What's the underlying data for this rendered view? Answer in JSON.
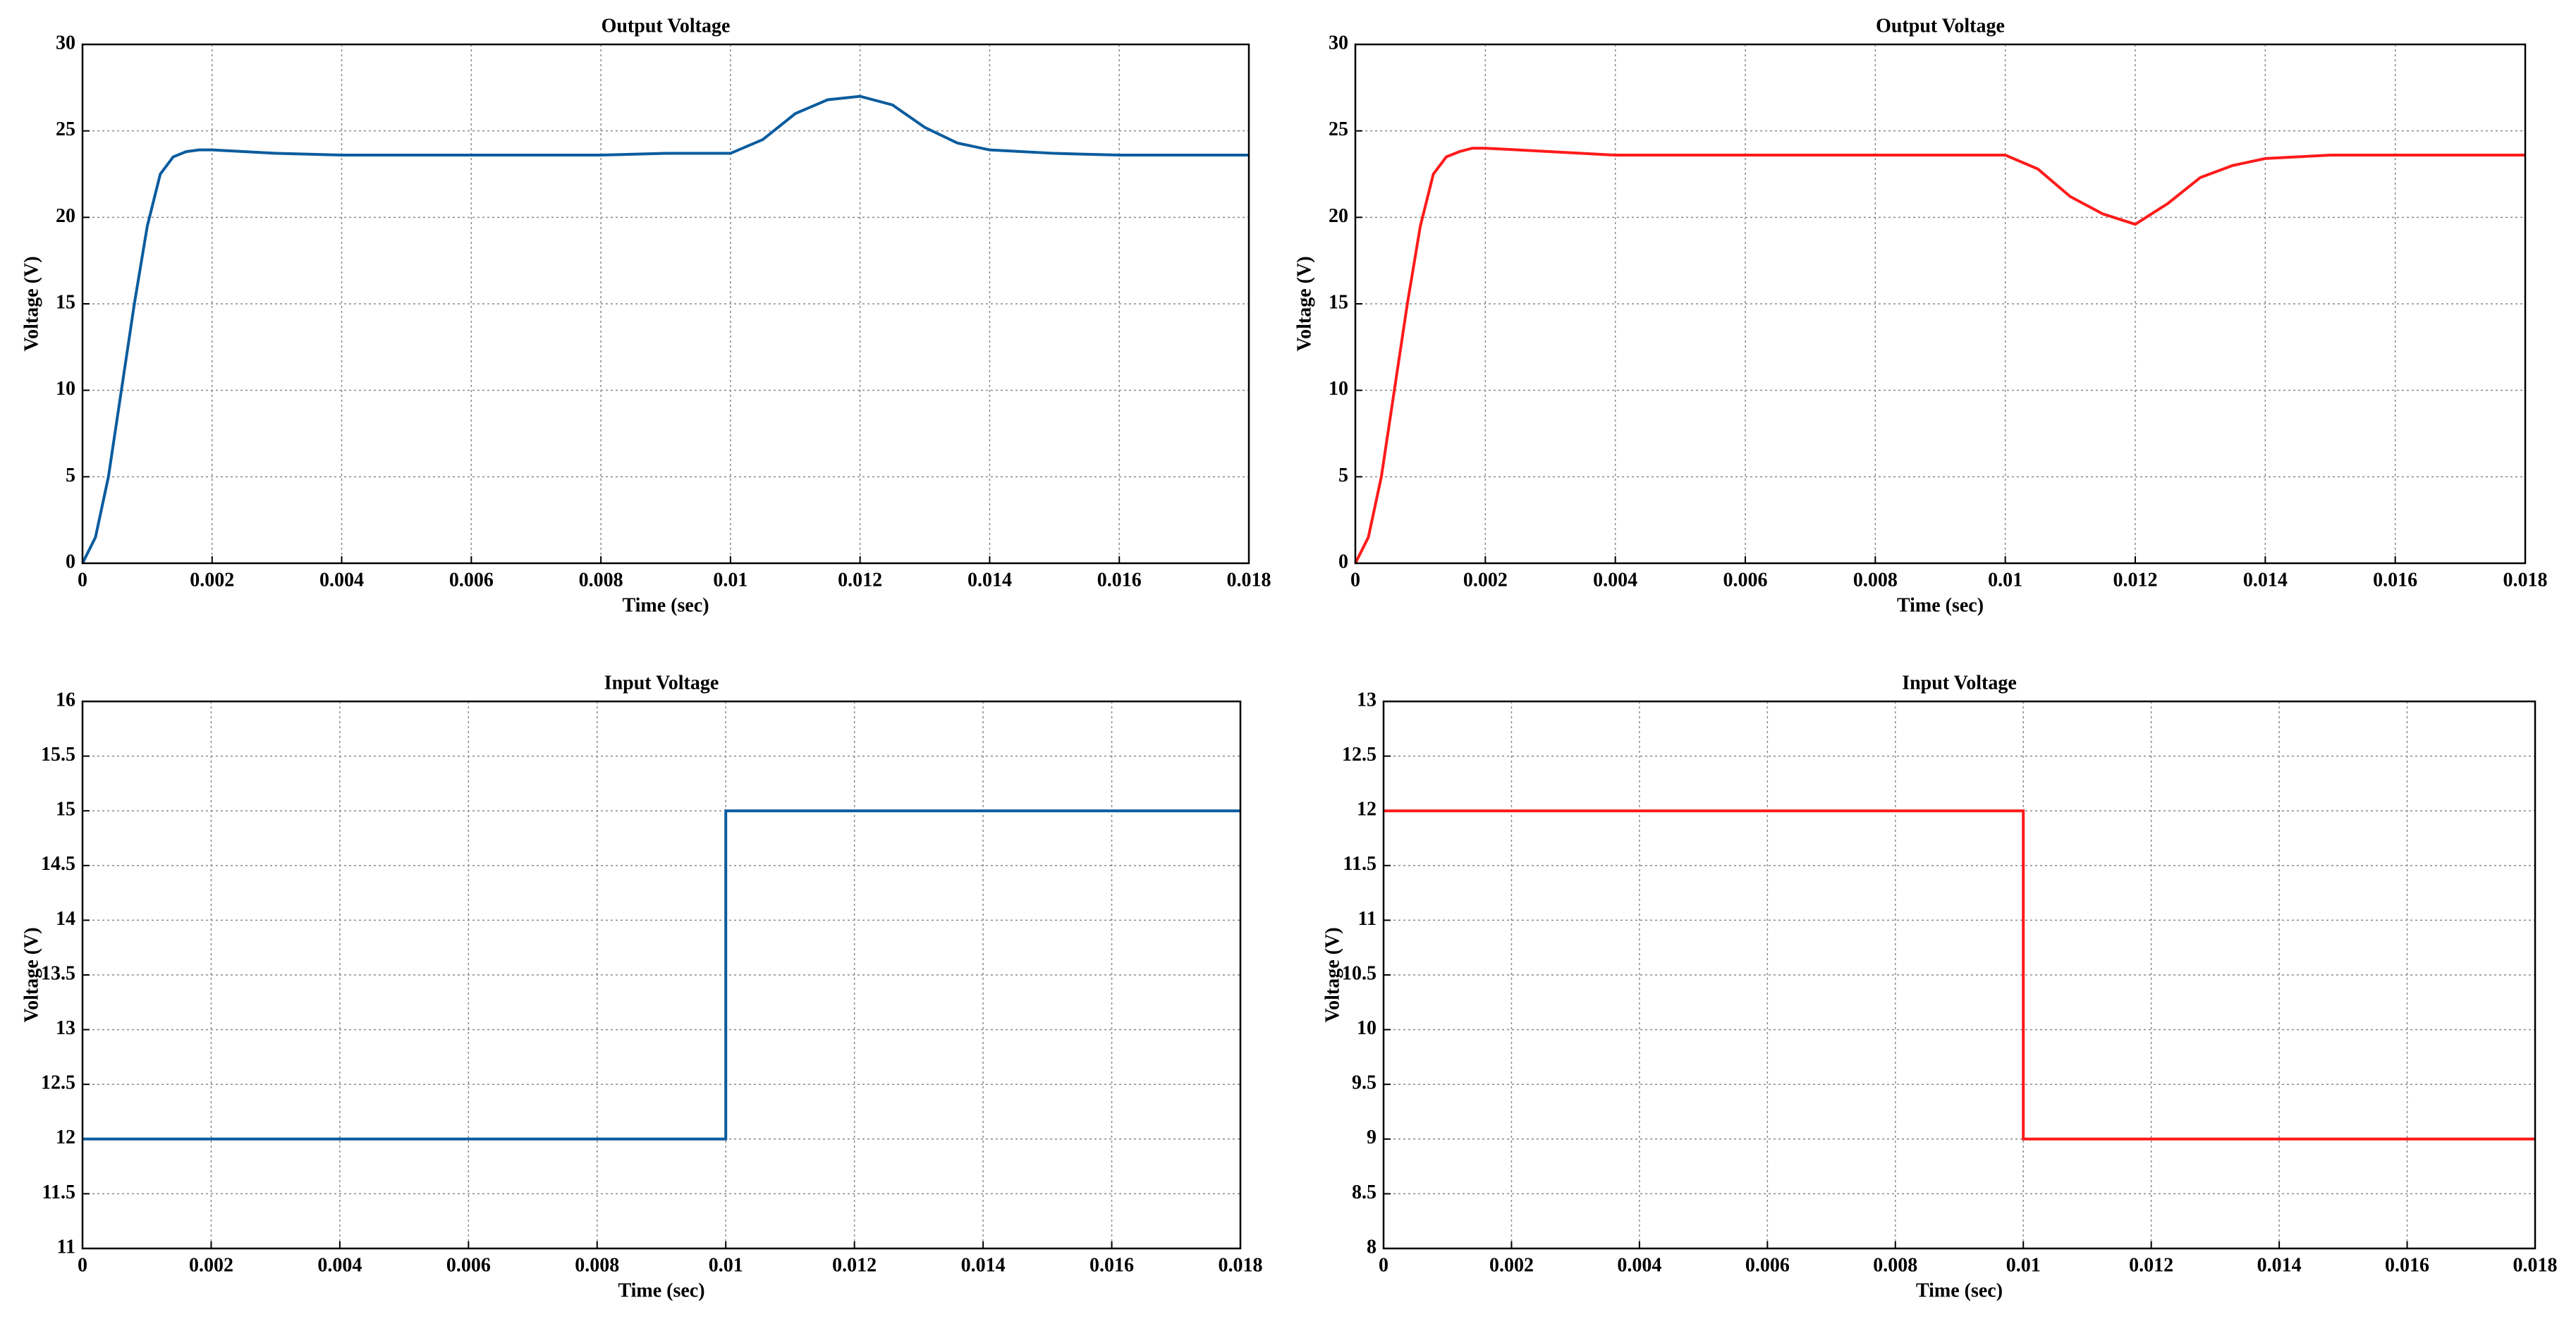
{
  "chart_data": [
    {
      "type": "line",
      "title": "Output Voltage",
      "xlabel": "Time (sec)",
      "ylabel": "Voltage (V)",
      "x": [
        0,
        0.0002,
        0.0004,
        0.0006,
        0.0008,
        0.001,
        0.0012,
        0.0014,
        0.0016,
        0.0018,
        0.002,
        0.003,
        0.004,
        0.005,
        0.006,
        0.007,
        0.008,
        0.009,
        0.01,
        0.0105,
        0.011,
        0.0115,
        0.012,
        0.0125,
        0.013,
        0.0135,
        0.014,
        0.015,
        0.016,
        0.017,
        0.018
      ],
      "values": [
        0,
        1.5,
        5,
        10,
        15,
        19.5,
        22.5,
        23.5,
        23.8,
        23.9,
        23.9,
        23.7,
        23.6,
        23.6,
        23.6,
        23.6,
        23.6,
        23.7,
        23.7,
        24.5,
        26,
        26.8,
        27,
        26.5,
        25.2,
        24.3,
        23.9,
        23.7,
        23.6,
        23.6,
        23.6
      ],
      "color": "#0a5c9e",
      "xlim": [
        0,
        0.018
      ],
      "xticks": [
        0,
        0.002,
        0.004,
        0.006,
        0.008,
        0.01,
        0.012,
        0.014,
        0.016,
        0.018
      ],
      "ylim": [
        0,
        30
      ],
      "yticks": [
        0,
        5,
        10,
        15,
        20,
        25,
        30
      ],
      "grid": true
    },
    {
      "type": "line",
      "title": "Output Voltage",
      "xlabel": "Time (sec)",
      "ylabel": "Voltage (V)",
      "x": [
        0,
        0.0002,
        0.0004,
        0.0006,
        0.0008,
        0.001,
        0.0012,
        0.0014,
        0.0016,
        0.0018,
        0.002,
        0.003,
        0.004,
        0.005,
        0.006,
        0.007,
        0.008,
        0.009,
        0.01,
        0.0105,
        0.011,
        0.0115,
        0.012,
        0.0125,
        0.013,
        0.0135,
        0.014,
        0.015,
        0.016,
        0.017,
        0.018
      ],
      "values": [
        0,
        1.5,
        5,
        10,
        15,
        19.5,
        22.5,
        23.5,
        23.8,
        24,
        24,
        23.8,
        23.6,
        23.6,
        23.6,
        23.6,
        23.6,
        23.6,
        23.6,
        22.8,
        21.2,
        20.2,
        19.6,
        20.8,
        22.3,
        23,
        23.4,
        23.6,
        23.6,
        23.6,
        23.6
      ],
      "color": "#ff1a1a",
      "xlim": [
        0,
        0.018
      ],
      "xticks": [
        0,
        0.002,
        0.004,
        0.006,
        0.008,
        0.01,
        0.012,
        0.014,
        0.016,
        0.018
      ],
      "ylim": [
        0,
        30
      ],
      "yticks": [
        0,
        5,
        10,
        15,
        20,
        25,
        30
      ],
      "grid": true
    },
    {
      "type": "line",
      "title": "Input Voltage",
      "xlabel": "Time (sec)",
      "ylabel": "Voltage (V)",
      "x": [
        0,
        0.01,
        0.01,
        0.018
      ],
      "values": [
        12,
        12,
        15,
        15
      ],
      "color": "#0a5c9e",
      "xlim": [
        0,
        0.018
      ],
      "xticks": [
        0,
        0.002,
        0.004,
        0.006,
        0.008,
        0.01,
        0.012,
        0.014,
        0.016,
        0.018
      ],
      "ylim": [
        11,
        16
      ],
      "yticks": [
        11,
        11.5,
        12,
        12.5,
        13,
        13.5,
        14,
        14.5,
        15,
        15.5,
        16
      ],
      "grid": true
    },
    {
      "type": "line",
      "title": "Input Voltage",
      "xlabel": "Time (sec)",
      "ylabel": "Voltage (V)",
      "x": [
        0,
        0.01,
        0.01,
        0.018
      ],
      "values": [
        12,
        12,
        9,
        9
      ],
      "color": "#ff1a1a",
      "xlim": [
        0,
        0.018
      ],
      "xticks": [
        0,
        0.002,
        0.004,
        0.006,
        0.008,
        0.01,
        0.012,
        0.014,
        0.016,
        0.018
      ],
      "ylim": [
        8,
        13
      ],
      "yticks": [
        8,
        8.5,
        9,
        9.5,
        10,
        10.5,
        11,
        11.5,
        12,
        12.5,
        13
      ],
      "grid": true
    }
  ]
}
